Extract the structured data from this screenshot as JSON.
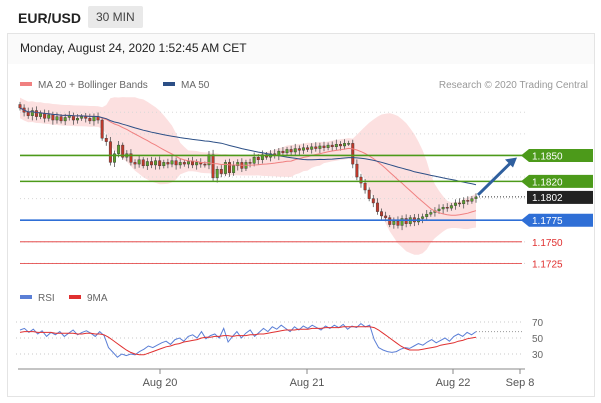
{
  "header": {
    "pair": "EUR/USD",
    "timeframe": "30 MIN",
    "date": "Monday, August 24, 2020 1:52:45 AM CET"
  },
  "legend": {
    "ma20": {
      "label": "MA 20 + Bollinger Bands",
      "color": "#f08080"
    },
    "ma50": {
      "label": "MA 50",
      "color": "#2c4f86"
    },
    "credit": "Research © 2020 Trading Central"
  },
  "rsi_legend": {
    "rsi": {
      "label": "RSI",
      "color": "#5b7fd6"
    },
    "ma9": {
      "label": "9MA",
      "color": "#e03030"
    }
  },
  "chart_data": [
    {
      "type": "candlestick",
      "ylim": [
        1.17,
        1.192
      ],
      "x_ticks": [
        "Aug 20",
        "Aug 21",
        "Aug 22",
        "Sep 8"
      ],
      "levels": [
        {
          "value": 1.185,
          "label": "1.1850",
          "color": "#4c9a1a",
          "style": "resistance"
        },
        {
          "value": 1.182,
          "label": "1.1820",
          "color": "#4c9a1a",
          "style": "resistance"
        },
        {
          "value": 1.1802,
          "label": "1.1802",
          "color": "#222222",
          "style": "last"
        },
        {
          "value": 1.1775,
          "label": "1.1775",
          "color": "#2f6fd6",
          "style": "pivot"
        },
        {
          "value": 1.175,
          "label": "1.1750",
          "color": "#e03030",
          "style": "support"
        },
        {
          "value": 1.1725,
          "label": "1.1725",
          "color": "#e03030",
          "style": "support"
        }
      ],
      "close_path": [
        1.1905,
        1.19,
        1.1896,
        1.1902,
        1.1895,
        1.1899,
        1.1893,
        1.1897,
        1.1891,
        1.1895,
        1.189,
        1.1894,
        1.1896,
        1.1891,
        1.1893,
        1.1895,
        1.1893,
        1.189,
        1.1895,
        1.1891,
        1.187,
        1.1866,
        1.1842,
        1.1852,
        1.1862,
        1.1848,
        1.1852,
        1.1842,
        1.184,
        1.1845,
        1.1838,
        1.1843,
        1.1839,
        1.1844,
        1.1838,
        1.1842,
        1.184,
        1.1844,
        1.1839,
        1.1842,
        1.184,
        1.1843,
        1.1839,
        1.1842,
        1.184,
        1.1839,
        1.1851,
        1.1824,
        1.1834,
        1.1829,
        1.1842,
        1.183,
        1.1838,
        1.1842,
        1.1835,
        1.1842,
        1.1841,
        1.1848,
        1.1845,
        1.1851,
        1.1848,
        1.1852,
        1.185,
        1.1855,
        1.1853,
        1.1857,
        1.1854,
        1.1858,
        1.1856,
        1.1859,
        1.1857,
        1.186,
        1.1858,
        1.1861,
        1.1859,
        1.1862,
        1.186,
        1.1863,
        1.1861,
        1.1864,
        1.1864,
        1.184,
        1.1825,
        1.1818,
        1.181,
        1.18,
        1.1795,
        1.1785,
        1.178,
        1.1778,
        1.177,
        1.1774,
        1.1769,
        1.1777,
        1.1771,
        1.1778,
        1.1773,
        1.1777,
        1.1779,
        1.1782,
        1.1784,
        1.1786,
        1.1788,
        1.179,
        1.1789,
        1.1792,
        1.1795,
        1.1794,
        1.1798,
        1.1797,
        1.18,
        1.1802
      ]
    },
    {
      "type": "line",
      "title": "RSI",
      "ylim": [
        20,
        80
      ],
      "y_ticks": [
        70,
        50,
        30
      ],
      "series": [
        {
          "name": "RSI",
          "values": [
            60,
            62,
            57,
            61,
            55,
            59,
            52,
            57,
            54,
            58,
            52,
            56,
            60,
            54,
            57,
            59,
            56,
            52,
            58,
            53,
            38,
            32,
            26,
            30,
            28,
            30,
            29,
            33,
            36,
            40,
            38,
            41,
            44,
            46,
            42,
            48,
            50,
            46,
            52,
            54,
            50,
            58,
            49,
            53,
            55,
            50,
            62,
            45,
            52,
            58,
            50,
            56,
            60,
            52,
            57,
            62,
            58,
            64,
            61,
            66,
            62,
            58,
            64,
            60,
            65,
            62,
            66,
            63,
            60,
            65,
            62,
            66,
            63,
            67,
            61,
            65,
            63,
            68,
            64,
            66,
            48,
            38,
            35,
            33,
            32,
            33,
            36,
            38,
            37,
            40,
            43,
            41,
            45,
            48,
            44,
            47,
            50,
            46,
            52,
            55,
            52,
            57,
            54,
            58
          ]
        },
        {
          "name": "9MA",
          "values": [
            57,
            58,
            58,
            58,
            57,
            57,
            57,
            57,
            56,
            56,
            56,
            56,
            56,
            55,
            55,
            56,
            56,
            55,
            55,
            54,
            51,
            47,
            43,
            39,
            35,
            32,
            30,
            29,
            29,
            31,
            33,
            35,
            37,
            39,
            40,
            42,
            43,
            45,
            46,
            47,
            48,
            50,
            51,
            51,
            52,
            52,
            53,
            53,
            52,
            53,
            53,
            53,
            54,
            54,
            55,
            55,
            56,
            57,
            58,
            59,
            60,
            60,
            60,
            61,
            61,
            61,
            62,
            62,
            62,
            63,
            63,
            63,
            63,
            64,
            64,
            64,
            64,
            64,
            64,
            64,
            63,
            60,
            56,
            52,
            48,
            44,
            40,
            37,
            35,
            35,
            35,
            36,
            37,
            38,
            39,
            41,
            42,
            43,
            44,
            46,
            47,
            49,
            50,
            51
          ]
        }
      ]
    }
  ]
}
